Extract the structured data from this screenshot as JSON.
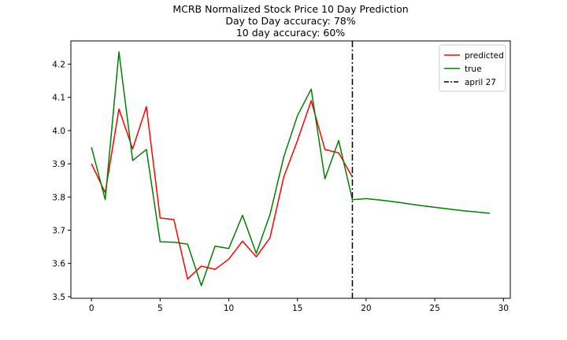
{
  "chart_data": {
    "type": "line",
    "title_lines": [
      "MCRB Normalized Stock Price 10 Day Prediction",
      "Day to Day accuracy: 78%",
      "10 day accuracy: 60%"
    ],
    "xlabel": "",
    "ylabel": "",
    "xlim": [
      -1.5,
      30.5
    ],
    "ylim": [
      3.495,
      4.27
    ],
    "xticks": [
      0,
      5,
      10,
      15,
      20,
      25,
      30
    ],
    "yticks": [
      3.5,
      3.6,
      3.7,
      3.8,
      3.9,
      4.0,
      4.1,
      4.2
    ],
    "grid": false,
    "legend_position": "top-right",
    "series": [
      {
        "name": "predicted",
        "color": "#ff0000",
        "x": [
          0,
          1,
          2,
          3,
          4,
          5,
          6,
          7,
          8,
          9,
          10,
          11,
          12,
          13,
          14,
          15,
          16,
          17,
          18,
          19
        ],
        "values": [
          3.9,
          3.813,
          4.065,
          3.945,
          4.072,
          3.737,
          3.732,
          3.553,
          3.592,
          3.582,
          3.613,
          3.667,
          3.62,
          3.677,
          3.86,
          3.97,
          4.09,
          3.943,
          3.933,
          3.86
        ]
      },
      {
        "name": "true",
        "color": "#008000",
        "x": [
          0,
          1,
          2,
          3,
          4,
          5,
          6,
          7,
          8,
          9,
          10,
          11,
          12,
          13,
          14,
          15,
          16,
          17,
          18,
          19,
          20,
          21,
          22,
          23,
          24,
          25,
          26,
          27,
          28,
          29
        ],
        "values": [
          3.95,
          3.792,
          4.237,
          3.91,
          3.943,
          3.665,
          3.664,
          3.658,
          3.533,
          3.652,
          3.645,
          3.745,
          3.63,
          3.747,
          3.92,
          4.045,
          4.125,
          3.855,
          3.97,
          3.792,
          3.795,
          3.791,
          3.786,
          3.78,
          3.774,
          3.769,
          3.764,
          3.759,
          3.755,
          3.751
        ]
      }
    ],
    "annotations": [
      {
        "type": "vline",
        "x": 19,
        "name": "april 27",
        "color": "#000000",
        "style": "dashdot"
      }
    ]
  }
}
